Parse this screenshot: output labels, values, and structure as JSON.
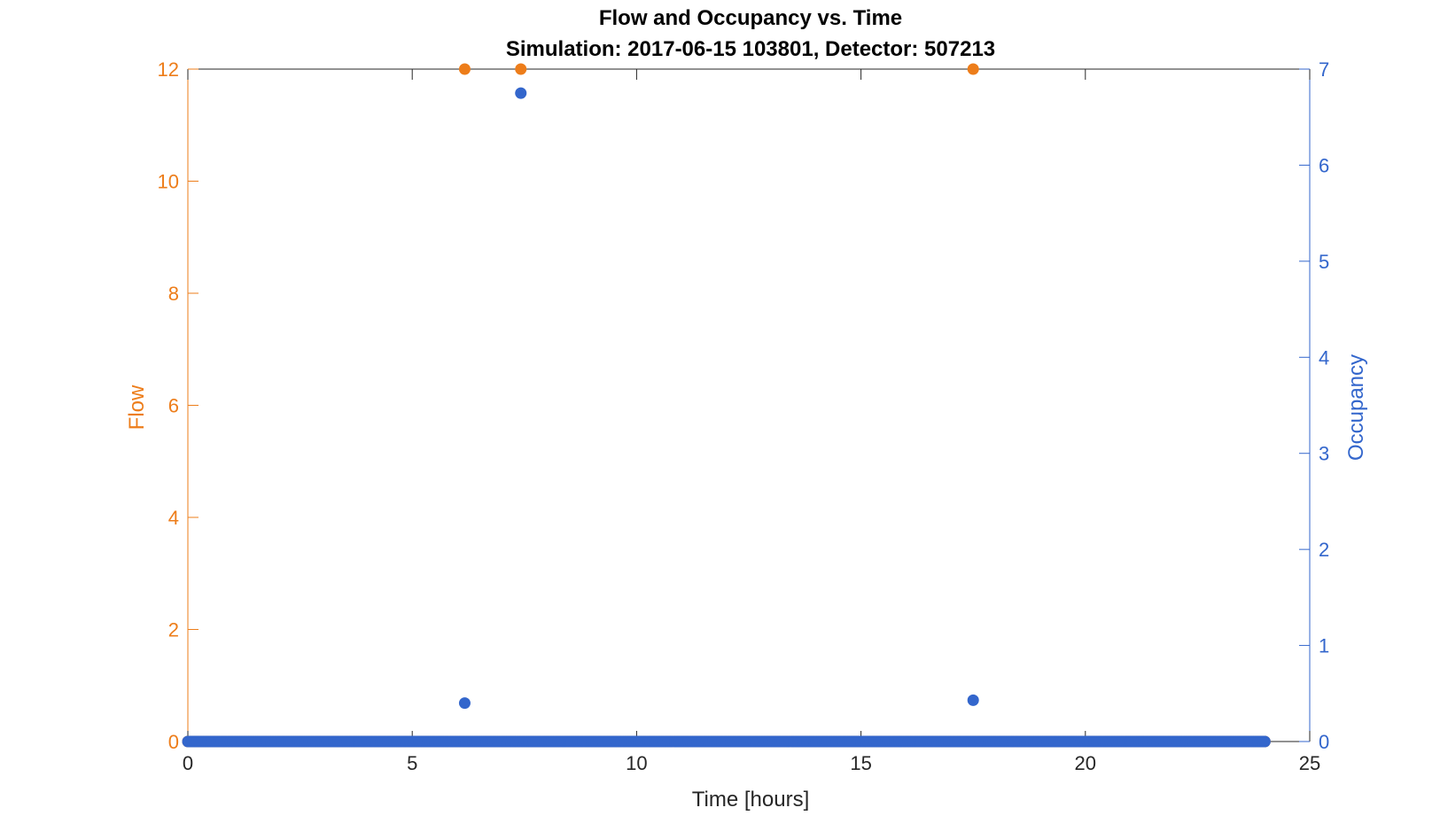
{
  "chart_data": {
    "type": "scatter",
    "title": "Flow and Occupancy vs. Time",
    "subtitle": "Simulation:  2017-06-15 103801,  Detector:  507213",
    "xlabel": "Time [hours]",
    "ylabel_left": "Flow",
    "ylabel_right": "Occupancy",
    "xlim": [
      0,
      25
    ],
    "ylim_left": [
      0,
      12
    ],
    "ylim_right": [
      0,
      7
    ],
    "x_ticks": [
      0,
      5,
      10,
      15,
      20,
      25
    ],
    "y_ticks_left": [
      0,
      2,
      4,
      6,
      8,
      10,
      12
    ],
    "y_ticks_right": [
      0,
      1,
      2,
      3,
      4,
      5,
      6,
      7
    ],
    "grid": false,
    "baseline": {
      "note": "samples every 0.05 h from 0 to 24 at value 0 for both series",
      "x_start": 0,
      "x_end": 24,
      "x_step": 0.05,
      "value": 0
    },
    "series": [
      {
        "name": "Flow",
        "axis": "left",
        "color": "#ED7D1A",
        "points": [
          {
            "x": 6.17,
            "y": 12
          },
          {
            "x": 7.42,
            "y": 12
          },
          {
            "x": 17.5,
            "y": 12
          }
        ]
      },
      {
        "name": "Occupancy",
        "axis": "right",
        "color": "#3366CC",
        "points": [
          {
            "x": 6.17,
            "y": 0.4
          },
          {
            "x": 7.42,
            "y": 6.75
          },
          {
            "x": 17.5,
            "y": 0.43
          }
        ]
      }
    ]
  }
}
